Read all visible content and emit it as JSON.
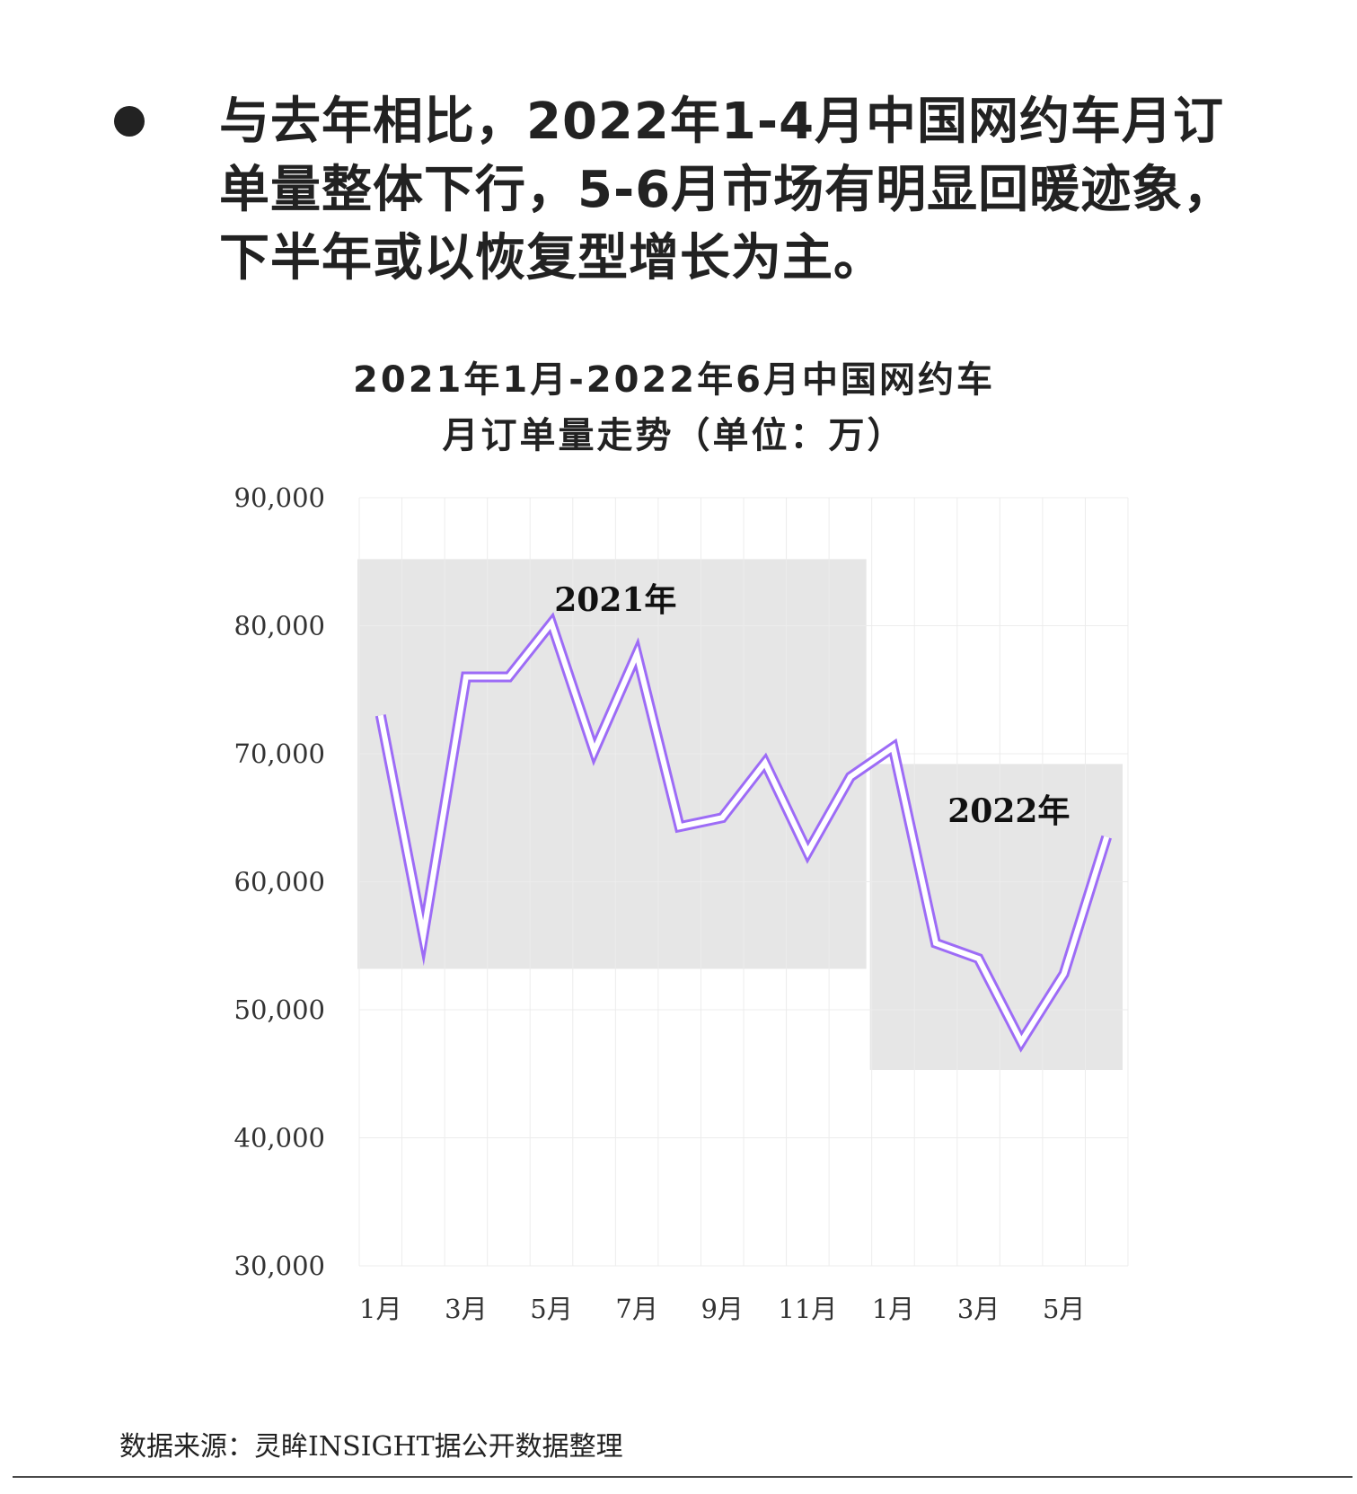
{
  "headline": {
    "text": "与去年相比，2022年1-4月中国网约车月订单量整体下行，5-6月市场有明显回暖迹象，下半年或以恢复型增长为主。"
  },
  "chart_title": {
    "line1": "2021年1月-2022年6月中国网约车",
    "line2": "月订单量走势（单位：万）"
  },
  "source": "数据来源：灵眸INSIGHT据公开数据整理",
  "colors": {
    "line": "#9d6cf6",
    "band": "#e6e6e6",
    "grid": "#ececec"
  },
  "chart_data": {
    "type": "line",
    "title": "2021年1月-2022年6月中国网约车月订单量走势（单位：万）",
    "xlabel": "",
    "ylabel": "",
    "x": [
      "2021-01",
      "2021-02",
      "2021-03",
      "2021-04",
      "2021-05",
      "2021-06",
      "2021-07",
      "2021-08",
      "2021-09",
      "2021-10",
      "2021-11",
      "2021-12",
      "2022-01",
      "2022-02",
      "2022-03",
      "2022-04",
      "2022-05",
      "2022-06"
    ],
    "x_tick_labels": [
      "1月",
      "",
      "3月",
      "",
      "5月",
      "",
      "7月",
      "",
      "9月",
      "",
      "11月",
      "",
      "1月",
      "",
      "3月",
      "",
      "5月",
      ""
    ],
    "values": [
      73000,
      55800,
      76000,
      76000,
      80200,
      70200,
      77800,
      64300,
      65000,
      69300,
      62300,
      68200,
      70500,
      55200,
      54000,
      47500,
      52800,
      63500
    ],
    "ylim": [
      30000,
      90000
    ],
    "y_ticks": [
      30000,
      40000,
      50000,
      60000,
      70000,
      80000,
      90000
    ],
    "y_tick_labels": [
      "30,000",
      "40,000",
      "50,000",
      "60,000",
      "70,000",
      "80,000",
      "90,000"
    ],
    "grid": true,
    "line_style": "double-outline",
    "annotations": [
      {
        "label": "2021年",
        "start": "2021-01",
        "end": "2021-12",
        "y_range": [
          53200,
          85200
        ]
      },
      {
        "label": "2022年",
        "start": "2022-01",
        "end": "2022-06",
        "y_range": [
          45300,
          69200
        ]
      }
    ]
  }
}
